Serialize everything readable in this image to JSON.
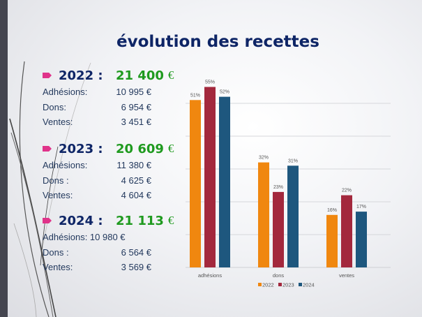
{
  "title": "évolution des recettes",
  "years": [
    {
      "year_label": "2022 :",
      "total": "21 400",
      "currency": "€",
      "rows": [
        {
          "label": "Adhésions:",
          "value": "10 995  €"
        },
        {
          "label": "Dons:",
          "value": "6 954 €"
        },
        {
          "label": "Ventes:",
          "value": "3 451 €"
        }
      ]
    },
    {
      "year_label": "2023 :",
      "total": "20 609",
      "currency": "€",
      "rows": [
        {
          "label": "Adhésions:",
          "value": "11 380 €"
        },
        {
          "label": "Dons :",
          "value": "4 625 €"
        },
        {
          "label": "Ventes:",
          "value": "4 604 €"
        }
      ]
    },
    {
      "year_label": "2024 :",
      "total": "21 113",
      "currency": "€",
      "rows": [
        {
          "label": "Adhésions: 10 980 €",
          "value": ""
        },
        {
          "label": "Dons :",
          "value": "6 564 €"
        },
        {
          "label": "Ventes:",
          "value": "3 569 €"
        }
      ]
    }
  ],
  "chart_data": {
    "type": "bar",
    "title": "",
    "xlabel": "",
    "ylabel": "",
    "categories": [
      "adhésions",
      "dons",
      "ventes"
    ],
    "series": [
      {
        "name": "2022",
        "color": "#f0870f",
        "values": [
          51,
          32,
          16
        ],
        "labels": [
          "51%",
          "32%",
          "16%"
        ]
      },
      {
        "name": "2023",
        "color": "#a3283d",
        "values": [
          55,
          23,
          22
        ],
        "labels": [
          "55%",
          "23%",
          "22%"
        ]
      },
      {
        "name": "2024",
        "color": "#1e577e",
        "values": [
          52,
          31,
          17
        ],
        "labels": [
          "52%",
          "31%",
          "17%"
        ]
      }
    ],
    "ylim": [
      0,
      60
    ],
    "gridlines": [
      10,
      20,
      30,
      40,
      50
    ],
    "grid": true,
    "y_axis_labels_visible": false,
    "legend_position": "bottom"
  }
}
